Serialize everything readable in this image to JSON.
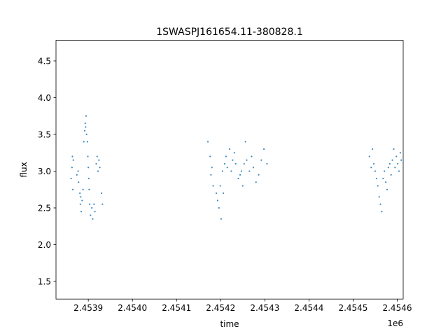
{
  "chart_data": {
    "type": "scatter",
    "title": "1SWASPJ161654.11-380828.1",
    "xlabel": "time",
    "ylabel": "flux",
    "x_offset_label": "1e6",
    "xlim": [
      2453826.8,
      2454613.5
    ],
    "ylim": [
      1.26,
      4.78
    ],
    "x_tick_values": [
      2453900,
      2454000,
      2454100,
      2454200,
      2454300,
      2454400,
      2454500,
      2454600
    ],
    "x_tick_labels": [
      "2.4539",
      "2.4540",
      "2.4541",
      "2.4542",
      "2.4543",
      "2.4544",
      "2.4545",
      "2.4546"
    ],
    "y_tick_values": [
      1.5,
      2.0,
      2.5,
      3.0,
      3.5,
      4.0,
      4.5
    ],
    "y_tick_labels": [
      "1.5",
      "2.0",
      "2.5",
      "3.0",
      "3.5",
      "4.0",
      "4.5"
    ],
    "grid": false,
    "legend": "none",
    "marker_color": "#1f77b4",
    "series": [
      {
        "points": [
          [
            2453861,
            2.9
          ],
          [
            2453863,
            3.05
          ],
          [
            2453864,
            3.2
          ],
          [
            2453865,
            2.75
          ],
          [
            2453866,
            3.15
          ],
          [
            2453874,
            2.95
          ],
          [
            2453877,
            3.0
          ],
          [
            2453878,
            2.85
          ],
          [
            2453881,
            2.7
          ],
          [
            2453882,
            2.55
          ],
          [
            2453883,
            2.65
          ],
          [
            2453884,
            2.45
          ],
          [
            2453886,
            2.6
          ],
          [
            2453888,
            2.75
          ],
          [
            2453890,
            3.4
          ],
          [
            2453892,
            3.55
          ],
          [
            2453893,
            3.65
          ],
          [
            2453894,
            3.6
          ],
          [
            2453895,
            3.75
          ],
          [
            2453896,
            3.5
          ],
          [
            2453898,
            3.4
          ],
          [
            2453899,
            3.2
          ],
          [
            2453900,
            3.05
          ],
          [
            2453901,
            2.9
          ],
          [
            2453902,
            2.75
          ],
          [
            2453903,
            2.55
          ],
          [
            2453905,
            2.4
          ],
          [
            2453908,
            2.5
          ],
          [
            2453910,
            2.35
          ],
          [
            2453913,
            2.55
          ],
          [
            2453915,
            2.45
          ],
          [
            2453918,
            3.1
          ],
          [
            2453920,
            3.2
          ],
          [
            2453922,
            3.0
          ],
          [
            2453924,
            3.15
          ],
          [
            2453926,
            3.05
          ],
          [
            2453930,
            2.7
          ],
          [
            2453932,
            2.55
          ],
          [
            2454171,
            3.4
          ],
          [
            2454176,
            3.2
          ],
          [
            2454178,
            2.95
          ],
          [
            2454180,
            3.05
          ],
          [
            2454183,
            2.8
          ],
          [
            2454190,
            2.7
          ],
          [
            2454193,
            2.6
          ],
          [
            2454196,
            2.5
          ],
          [
            2454199,
            2.8
          ],
          [
            2454201,
            2.35
          ],
          [
            2454204,
            3.0
          ],
          [
            2454206,
            2.7
          ],
          [
            2454209,
            3.1
          ],
          [
            2454212,
            3.2
          ],
          [
            2454215,
            3.05
          ],
          [
            2454220,
            3.3
          ],
          [
            2454224,
            3.0
          ],
          [
            2454227,
            3.15
          ],
          [
            2454231,
            3.25
          ],
          [
            2454234,
            3.1
          ],
          [
            2454240,
            2.9
          ],
          [
            2454244,
            2.95
          ],
          [
            2454247,
            3.0
          ],
          [
            2454250,
            2.8
          ],
          [
            2454253,
            3.1
          ],
          [
            2454256,
            3.4
          ],
          [
            2454259,
            3.15
          ],
          [
            2454265,
            3.0
          ],
          [
            2454270,
            3.2
          ],
          [
            2454274,
            3.05
          ],
          [
            2454280,
            2.85
          ],
          [
            2454286,
            2.95
          ],
          [
            2454292,
            3.15
          ],
          [
            2454298,
            3.3
          ],
          [
            2454305,
            3.1
          ],
          [
            2454537,
            3.2
          ],
          [
            2454541,
            3.05
          ],
          [
            2454544,
            3.3
          ],
          [
            2454547,
            3.1
          ],
          [
            2454550,
            3.0
          ],
          [
            2454553,
            2.9
          ],
          [
            2454556,
            2.8
          ],
          [
            2454559,
            2.65
          ],
          [
            2454562,
            2.55
          ],
          [
            2454565,
            2.45
          ],
          [
            2454568,
            2.9
          ],
          [
            2454571,
            3.0
          ],
          [
            2454574,
            2.85
          ],
          [
            2454577,
            2.75
          ],
          [
            2454580,
            3.05
          ],
          [
            2454583,
            3.1
          ],
          [
            2454586,
            2.95
          ],
          [
            2454589,
            3.15
          ],
          [
            2454592,
            3.3
          ],
          [
            2454595,
            3.05
          ],
          [
            2454598,
            3.2
          ],
          [
            2454601,
            3.1
          ],
          [
            2454604,
            3.0
          ],
          [
            2454607,
            3.25
          ],
          [
            2454609,
            3.15
          ]
        ]
      }
    ]
  }
}
